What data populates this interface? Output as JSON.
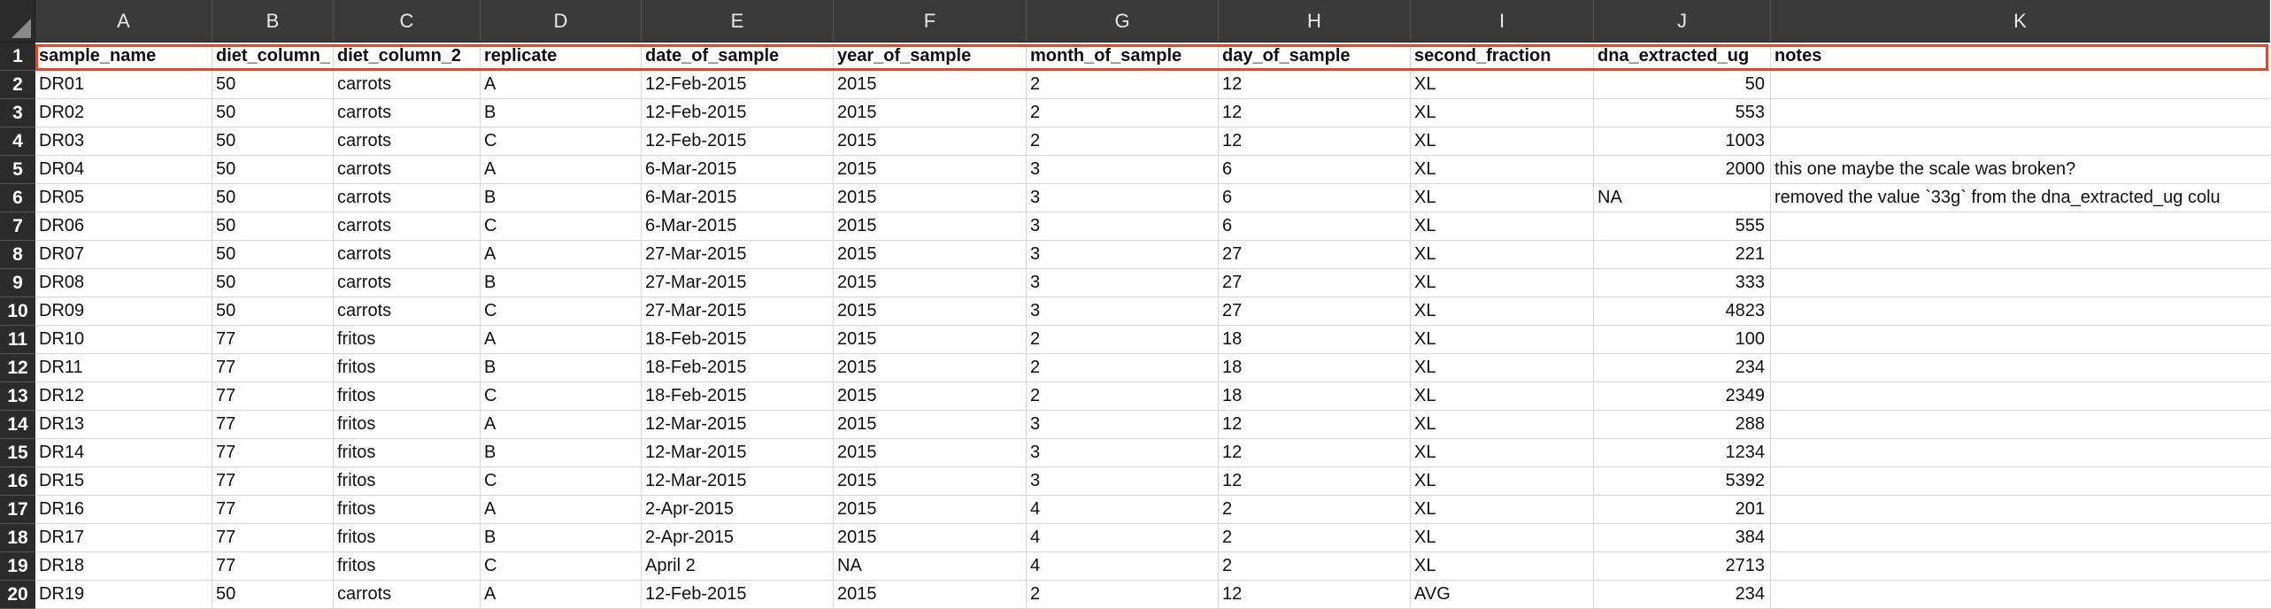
{
  "columns": [
    "A",
    "B",
    "C",
    "D",
    "E",
    "F",
    "G",
    "H",
    "I",
    "J",
    "K"
  ],
  "rows": [
    {
      "n": "1",
      "cells": [
        "sample_name",
        "diet_column_",
        "diet_column_2",
        "replicate",
        "date_of_sample",
        "year_of_sample",
        "month_of_sample",
        "day_of_sample",
        "second_fraction",
        "dna_extracted_ug",
        "notes"
      ]
    },
    {
      "n": "2",
      "cells": [
        "DR01",
        "50",
        "carrots",
        "A",
        "12-Feb-2015",
        "2015",
        "2",
        "12",
        "XL",
        "50",
        ""
      ]
    },
    {
      "n": "3",
      "cells": [
        "DR02",
        "50",
        "carrots",
        "B",
        "12-Feb-2015",
        "2015",
        "2",
        "12",
        "XL",
        "553",
        ""
      ]
    },
    {
      "n": "4",
      "cells": [
        "DR03",
        "50",
        "carrots",
        "C",
        "12-Feb-2015",
        "2015",
        "2",
        "12",
        "XL",
        "1003",
        ""
      ]
    },
    {
      "n": "5",
      "cells": [
        "DR04",
        "50",
        "carrots",
        "A",
        "6-Mar-2015",
        "2015",
        "3",
        "6",
        "XL",
        "2000",
        "this one maybe the scale was broken?"
      ]
    },
    {
      "n": "6",
      "cells": [
        "DR05",
        "50",
        "carrots",
        "B",
        "6-Mar-2015",
        "2015",
        "3",
        "6",
        "XL",
        "NA",
        "removed the value `33g` from the dna_extracted_ug colu"
      ]
    },
    {
      "n": "7",
      "cells": [
        "DR06",
        "50",
        "carrots",
        "C",
        "6-Mar-2015",
        "2015",
        "3",
        "6",
        "XL",
        "555",
        ""
      ]
    },
    {
      "n": "8",
      "cells": [
        "DR07",
        "50",
        "carrots",
        "A",
        "27-Mar-2015",
        "2015",
        "3",
        "27",
        "XL",
        "221",
        ""
      ]
    },
    {
      "n": "9",
      "cells": [
        "DR08",
        "50",
        "carrots",
        "B",
        "27-Mar-2015",
        "2015",
        "3",
        "27",
        "XL",
        "333",
        ""
      ]
    },
    {
      "n": "10",
      "cells": [
        "DR09",
        "50",
        "carrots",
        "C",
        "27-Mar-2015",
        "2015",
        "3",
        "27",
        "XL",
        "4823",
        ""
      ]
    },
    {
      "n": "11",
      "cells": [
        "DR10",
        "77",
        "fritos",
        "A",
        "18-Feb-2015",
        "2015",
        "2",
        "18",
        "XL",
        "100",
        ""
      ]
    },
    {
      "n": "12",
      "cells": [
        "DR11",
        "77",
        "fritos",
        "B",
        "18-Feb-2015",
        "2015",
        "2",
        "18",
        "XL",
        "234",
        ""
      ]
    },
    {
      "n": "13",
      "cells": [
        "DR12",
        "77",
        "fritos",
        "C",
        "18-Feb-2015",
        "2015",
        "2",
        "18",
        "XL",
        "2349",
        ""
      ]
    },
    {
      "n": "14",
      "cells": [
        "DR13",
        "77",
        "fritos",
        "A",
        "12-Mar-2015",
        "2015",
        "3",
        "12",
        "XL",
        "288",
        ""
      ]
    },
    {
      "n": "15",
      "cells": [
        "DR14",
        "77",
        "fritos",
        "B",
        "12-Mar-2015",
        "2015",
        "3",
        "12",
        "XL",
        "1234",
        ""
      ]
    },
    {
      "n": "16",
      "cells": [
        "DR15",
        "77",
        "fritos",
        "C",
        "12-Mar-2015",
        "2015",
        "3",
        "12",
        "XL",
        "5392",
        ""
      ]
    },
    {
      "n": "17",
      "cells": [
        "DR16",
        "77",
        "fritos",
        "A",
        "2-Apr-2015",
        "2015",
        "4",
        "2",
        "XL",
        "201",
        ""
      ]
    },
    {
      "n": "18",
      "cells": [
        "DR17",
        "77",
        "fritos",
        "B",
        "2-Apr-2015",
        "2015",
        "4",
        "2",
        "XL",
        "384",
        ""
      ]
    },
    {
      "n": "19",
      "cells": [
        "DR18",
        "77",
        "fritos",
        "C",
        "April 2",
        "NA",
        "4",
        "2",
        "XL",
        "2713",
        ""
      ]
    },
    {
      "n": "20",
      "cells": [
        "DR19",
        "50",
        "carrots",
        "A",
        "12-Feb-2015",
        "2015",
        "2",
        "12",
        "AVG",
        "234",
        ""
      ]
    }
  ],
  "colors": {
    "selection": "#e0472d",
    "header_bg": "#3a3a3a",
    "row_header_bg": "#2b2b2b"
  }
}
